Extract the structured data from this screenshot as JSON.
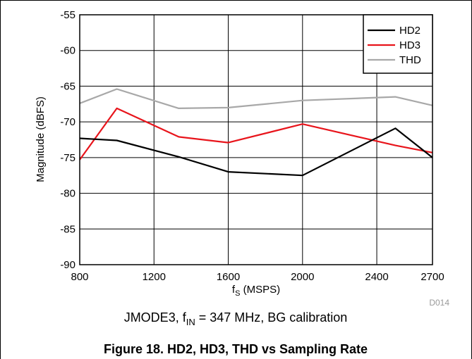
{
  "chart_data": {
    "type": "line",
    "x_values": [
      800,
      1000,
      1333,
      1600,
      2000,
      2500,
      2700
    ],
    "x_ticks": [
      800,
      1200,
      1600,
      2000,
      2400,
      2700
    ],
    "x_tick_labels": [
      "800",
      "1200",
      "1600",
      "2000",
      "2400",
      "2700"
    ],
    "xlim": [
      800,
      2700
    ],
    "xlabel_main": "f",
    "xlabel_sub": "S",
    "xlabel_rest": " (MSPS)",
    "ylabel": "Magnitude (dBFS)",
    "ylim": [
      -90,
      -55
    ],
    "y_ticks": [
      -55,
      -60,
      -65,
      -70,
      -75,
      -80,
      -85,
      -90
    ],
    "y_tick_labels": [
      "-55",
      "-60",
      "-65",
      "-70",
      "-75",
      "-80",
      "-85",
      "-90"
    ],
    "grid": true,
    "legend_position": "top-right",
    "series": [
      {
        "name": "HD2",
        "color": "#000000",
        "values": [
          -72.3,
          -72.6,
          -74.9,
          -77.0,
          -77.5,
          -70.9,
          -75.0
        ]
      },
      {
        "name": "HD3",
        "color": "#e8141b",
        "values": [
          -75.3,
          -68.1,
          -72.1,
          -72.9,
          -70.3,
          -73.3,
          -74.3
        ]
      },
      {
        "name": "THD",
        "color": "#a8a8a8",
        "values": [
          -67.4,
          -65.4,
          -68.1,
          -68.0,
          -67.0,
          -66.5,
          -67.7
        ]
      }
    ],
    "figure_code": "D014",
    "subtitle_parts": {
      "pre": "JMODE3, f",
      "sub": "IN",
      "post": " = 347 MHz, BG calibration"
    },
    "caption": "Figure 18. HD2, HD3, THD vs Sampling Rate"
  }
}
